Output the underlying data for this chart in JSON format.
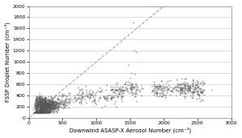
{
  "title": "",
  "xlabel": "Downwind ASASP-X Aerosol Number (cm⁻³)",
  "ylabel": "FSSP Droplet Number (cm⁻³)",
  "xlim": [
    0,
    3000
  ],
  "ylim": [
    0,
    2000
  ],
  "xticks": [
    0,
    500,
    1000,
    1500,
    2000,
    2500,
    3000
  ],
  "yticks": [
    0,
    200,
    400,
    600,
    800,
    1000,
    1200,
    1400,
    1600,
    1800,
    2000
  ],
  "ref_line": [
    [
      0,
      2000
    ],
    [
      0,
      2000
    ]
  ],
  "background_color": "#ffffff",
  "scatter_color": "#555555",
  "scatter_alpha": 0.5,
  "scatter_size": 2,
  "ref_line_color": "#aaaaaa",
  "grid_color": "#cccccc"
}
